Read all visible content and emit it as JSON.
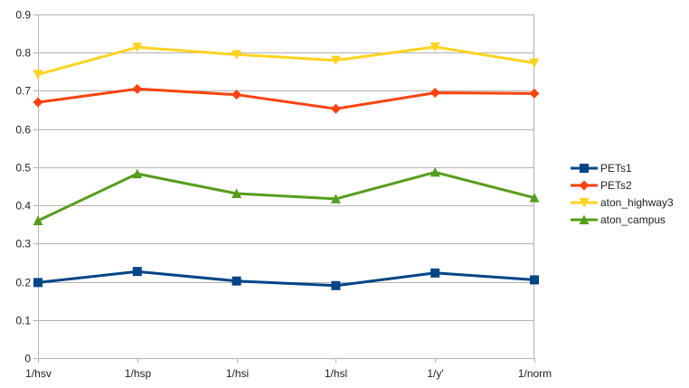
{
  "chart_data": {
    "type": "line",
    "title": "",
    "xlabel": "",
    "ylabel": "",
    "categories": [
      "1/hsv",
      "1/hsp",
      "1/hsi",
      "1/hsl",
      "1/y'",
      "1/norm"
    ],
    "ylim": [
      0,
      0.9
    ],
    "yticks": [
      0,
      0.1,
      0.2,
      0.3,
      0.4,
      0.5,
      0.6,
      0.7,
      0.8,
      0.9
    ],
    "ytick_labels": [
      "0",
      "0.1",
      "0.2",
      "0.3",
      "0.4",
      "0.5",
      "0.6",
      "0.7",
      "0.8",
      "0.9"
    ],
    "grid": "horizontal",
    "legend_position": "right",
    "series": [
      {
        "name": "PETs1",
        "color": "#004586",
        "marker": "square",
        "values": [
          0.198,
          0.227,
          0.202,
          0.19,
          0.223,
          0.205
        ]
      },
      {
        "name": "PETs2",
        "color": "#ff420e",
        "marker": "diamond",
        "values": [
          0.67,
          0.705,
          0.69,
          0.653,
          0.695,
          0.693
        ]
      },
      {
        "name": "aton_highway3",
        "color": "#ffd320",
        "marker": "triangle-down",
        "values": [
          0.743,
          0.814,
          0.795,
          0.78,
          0.815,
          0.773
        ]
      },
      {
        "name": "aton_campus",
        "color": "#579d1c",
        "marker": "triangle-up",
        "values": [
          0.36,
          0.483,
          0.431,
          0.417,
          0.487,
          0.42
        ]
      }
    ]
  }
}
